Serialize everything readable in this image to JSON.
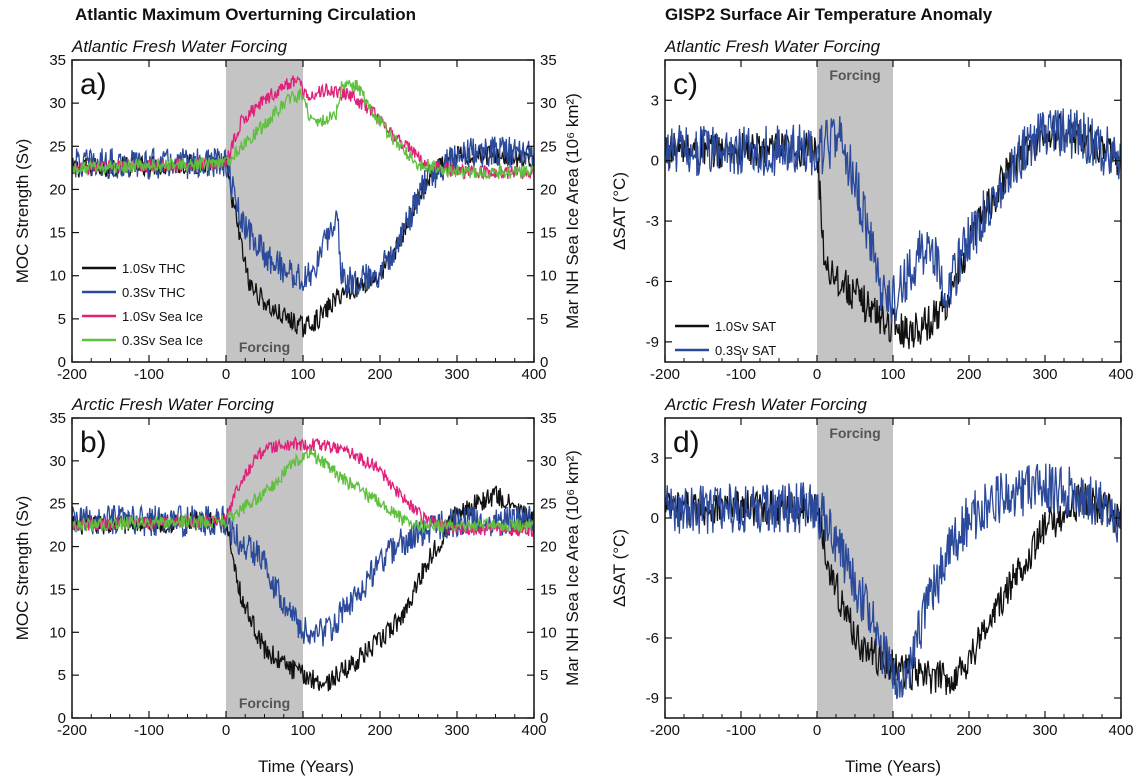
{
  "figure": {
    "left_title": "Atlantic Maximum Overturning Circulation",
    "right_title": "GISP2 Surface Air Temperature Anomaly",
    "x_axis_label": "Time (Years)"
  },
  "colors": {
    "black_1_0Sv": "#111111",
    "blue_0_3Sv": "#2b4a9b",
    "magenta_1_0Sv_ice": "#e0217a",
    "green_0_3Sv_ice": "#5fbf3f",
    "forcing_shade": "#c4c4c4"
  },
  "chart_data": [
    {
      "panel": "a)",
      "type": "line",
      "subtitle": "Atlantic Fresh Water Forcing",
      "ylabel": "MOC Strength (Sv)",
      "y2label": "Mar NH Sea Ice Area (10⁶ km²)",
      "xlim": [
        -200,
        400
      ],
      "ylim": [
        0,
        35
      ],
      "y2lim": [
        0,
        35
      ],
      "xticks": [
        -200,
        -100,
        0,
        100,
        200,
        300,
        400
      ],
      "yticks": [
        0,
        5,
        10,
        15,
        20,
        25,
        30,
        35
      ],
      "forcing_span": [
        0,
        100
      ],
      "forcing_label": "Forcing",
      "forcing_label_pos": "bottom",
      "legend_position": "lower-left",
      "series": [
        {
          "name": "1.0Sv THC",
          "color": "#111111",
          "noise": 1.2,
          "x": [
            -200,
            0,
            10,
            30,
            60,
            100,
            120,
            150,
            180,
            200,
            220,
            250,
            270,
            300,
            350,
            400
          ],
          "y": [
            22.5,
            23,
            18,
            9,
            6,
            4,
            5,
            8,
            9,
            10,
            13,
            19,
            22,
            24,
            24,
            23
          ]
        },
        {
          "name": "0.3Sv THC",
          "color": "#2b4a9b",
          "noise": 1.8,
          "x": [
            -200,
            0,
            20,
            50,
            80,
            100,
            110,
            130,
            145,
            150,
            160,
            180,
            200,
            230,
            260,
            300,
            350,
            400
          ],
          "y": [
            23,
            23,
            16,
            12.5,
            10.5,
            9.5,
            10,
            14,
            17,
            10,
            9.5,
            9.5,
            10.5,
            15,
            21,
            24,
            24.5,
            24
          ]
        },
        {
          "name": "1.0Sv Sea Ice",
          "color": "#e0217a",
          "noise": 0.8,
          "x": [
            -200,
            0,
            20,
            60,
            95,
            100,
            130,
            160,
            190,
            220,
            260,
            300,
            400
          ],
          "y": [
            22.5,
            23,
            28,
            31,
            33,
            31,
            31.5,
            31,
            29,
            26,
            23,
            22,
            22
          ]
        },
        {
          "name": "0.3Sv Sea Ice",
          "color": "#5fbf3f",
          "noise": 0.8,
          "x": [
            -200,
            0,
            20,
            50,
            80,
            100,
            110,
            130,
            145,
            150,
            170,
            190,
            220,
            250,
            300,
            400
          ],
          "y": [
            22.5,
            23,
            25,
            27.5,
            30.5,
            31,
            28,
            28,
            29,
            32,
            32,
            29,
            25.5,
            23,
            22,
            22
          ]
        }
      ]
    },
    {
      "panel": "b)",
      "type": "line",
      "subtitle": "Arctic Fresh Water Forcing",
      "ylabel": "MOC Strength (Sv)",
      "y2label": "Mar NH Sea Ice Area (10⁶ km²)",
      "xlim": [
        -200,
        400
      ],
      "ylim": [
        0,
        35
      ],
      "y2lim": [
        0,
        35
      ],
      "xticks": [
        -200,
        -100,
        0,
        100,
        200,
        300,
        400
      ],
      "yticks": [
        0,
        5,
        10,
        15,
        20,
        25,
        30,
        35
      ],
      "forcing_span": [
        0,
        100
      ],
      "forcing_label": "Forcing",
      "forcing_label_pos": "bottom",
      "series": [
        {
          "name": "1.0Sv THC",
          "color": "#111111",
          "noise": 1.2,
          "x": [
            -200,
            0,
            20,
            50,
            80,
            100,
            130,
            160,
            200,
            230,
            260,
            300,
            350,
            400
          ],
          "y": [
            22.5,
            23,
            14,
            8,
            6,
            5,
            4,
            6,
            9,
            12,
            18,
            24,
            26,
            23
          ]
        },
        {
          "name": "0.3Sv THC",
          "color": "#2b4a9b",
          "noise": 1.8,
          "x": [
            -200,
            0,
            20,
            50,
            60,
            80,
            100,
            130,
            160,
            190,
            220,
            260,
            300,
            400
          ],
          "y": [
            23,
            23,
            20,
            19,
            16,
            13,
            10,
            10,
            13,
            17,
            20,
            22,
            23,
            23
          ]
        },
        {
          "name": "1.0Sv Sea Ice",
          "color": "#e0217a",
          "noise": 0.8,
          "x": [
            -200,
            0,
            20,
            50,
            100,
            150,
            200,
            230,
            260,
            300,
            400
          ],
          "y": [
            22.5,
            23,
            28,
            31.5,
            32,
            31.5,
            29,
            25.5,
            23,
            22,
            22
          ]
        },
        {
          "name": "0.3Sv Sea Ice",
          "color": "#5fbf3f",
          "noise": 0.8,
          "x": [
            -200,
            0,
            30,
            60,
            90,
            110,
            150,
            200,
            240,
            300,
            400
          ],
          "y": [
            22.5,
            23,
            25,
            27,
            30,
            31,
            28,
            25,
            22.5,
            22.5,
            22.5
          ]
        }
      ]
    },
    {
      "panel": "c)",
      "type": "line",
      "subtitle": "Atlantic Fresh Water Forcing",
      "ylabel": "ΔSAT (°C)",
      "xlim": [
        -200,
        400
      ],
      "ylim": [
        -10,
        5
      ],
      "xticks": [
        -200,
        -100,
        0,
        100,
        200,
        300,
        400
      ],
      "yticks": [
        -9,
        -6,
        -3,
        0,
        3
      ],
      "forcing_span": [
        0,
        100
      ],
      "forcing_label": "Forcing",
      "forcing_label_pos": "top",
      "legend_position": "lower-left",
      "series": [
        {
          "name": "1.0Sv SAT",
          "color": "#111111",
          "noise": 0.9,
          "x": [
            -200,
            0,
            10,
            30,
            60,
            90,
            120,
            150,
            180,
            200,
            230,
            260,
            290,
            320,
            360,
            400
          ],
          "y": [
            0.5,
            0.5,
            -5,
            -6,
            -7,
            -8,
            -8.5,
            -8,
            -6.5,
            -4,
            -2,
            0,
            1,
            1.5,
            1,
            0
          ]
        },
        {
          "name": "0.3Sv SAT",
          "color": "#2b4a9b",
          "noise": 1.3,
          "x": [
            -200,
            0,
            30,
            50,
            70,
            80,
            100,
            130,
            150,
            170,
            200,
            230,
            260,
            300,
            350,
            400
          ],
          "y": [
            0.5,
            0.5,
            1,
            -1,
            -4,
            -6,
            -7,
            -5,
            -4,
            -6.5,
            -4,
            -2,
            0,
            1.5,
            1.2,
            0
          ]
        }
      ]
    },
    {
      "panel": "d)",
      "type": "line",
      "subtitle": "Arctic Fresh Water Forcing",
      "ylabel": "ΔSAT (°C)",
      "xlim": [
        -200,
        400
      ],
      "ylim": [
        -10,
        5
      ],
      "xticks": [
        -200,
        -100,
        0,
        100,
        200,
        300,
        400
      ],
      "yticks": [
        -9,
        -6,
        -3,
        0,
        3
      ],
      "forcing_span": [
        0,
        100
      ],
      "forcing_label": "Forcing",
      "forcing_label_pos": "top",
      "series": [
        {
          "name": "1.0Sv SAT",
          "color": "#111111",
          "noise": 0.9,
          "x": [
            -200,
            0,
            20,
            40,
            60,
            100,
            150,
            180,
            200,
            230,
            260,
            300,
            350,
            400
          ],
          "y": [
            0.5,
            0.5,
            -3,
            -5,
            -6.5,
            -7.5,
            -8,
            -8,
            -7,
            -5,
            -3,
            -0.5,
            1,
            0
          ]
        },
        {
          "name": "0.3Sv SAT",
          "color": "#2b4a9b",
          "noise": 1.3,
          "x": [
            -200,
            0,
            20,
            40,
            70,
            100,
            120,
            140,
            170,
            200,
            240,
            280,
            320,
            360,
            400
          ],
          "y": [
            0.5,
            0.5,
            -1,
            -2.5,
            -5,
            -8,
            -7.5,
            -5,
            -2,
            0,
            1,
            1.5,
            1.5,
            1,
            -0.5
          ]
        }
      ]
    }
  ]
}
